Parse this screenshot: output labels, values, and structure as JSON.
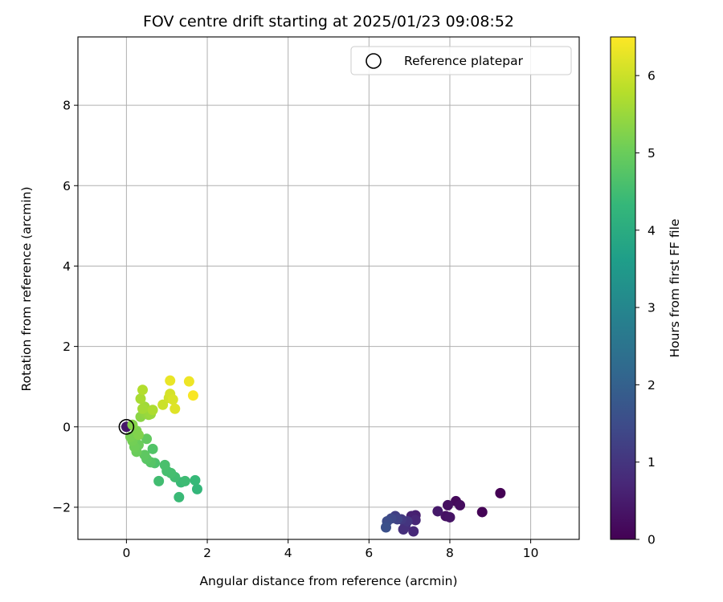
{
  "chart_data": {
    "type": "scatter",
    "title": "FOV centre drift starting at 2025/01/23 09:08:52",
    "xlabel": "Angular distance from reference (arcmin)",
    "ylabel": "Rotation from reference (arcmin)",
    "xlim": [
      -1.2,
      11.2
    ],
    "ylim": [
      -2.8,
      9.7
    ],
    "xticks": [
      0,
      2,
      4,
      6,
      8,
      10
    ],
    "xtick_labels": [
      "0",
      "2",
      "4",
      "6",
      "8",
      "10"
    ],
    "yticks": [
      -2,
      0,
      2,
      4,
      6,
      8
    ],
    "ytick_labels": [
      "−2",
      "0",
      "2",
      "4",
      "6",
      "8"
    ],
    "grid": true,
    "legend": {
      "position": "top-right",
      "entries": [
        {
          "label": "Reference platepar",
          "marker": "open-circle"
        }
      ]
    },
    "reference_point": {
      "x": 0,
      "y": 0
    },
    "colorbar": {
      "label": "Hours from first FF file",
      "range": [
        0,
        6.5
      ],
      "ticks": [
        0,
        1,
        2,
        3,
        4,
        5,
        6
      ],
      "tick_labels": [
        "0",
        "1",
        "2",
        "3",
        "4",
        "5",
        "6"
      ],
      "colormap": "viridis"
    },
    "colormap_stops": [
      "#440154",
      "#482878",
      "#3e4a89",
      "#31688e",
      "#26828e",
      "#1f9e89",
      "#35b779",
      "#6ece58",
      "#b5de2b",
      "#fde725"
    ],
    "points": [
      {
        "x": 9.25,
        "y": -1.65,
        "t": 0.0
      },
      {
        "x": 8.8,
        "y": -2.12,
        "t": 0.05
      },
      {
        "x": 8.15,
        "y": -1.85,
        "t": 0.15
      },
      {
        "x": 8.25,
        "y": -1.95,
        "t": 0.2
      },
      {
        "x": 7.95,
        "y": -1.95,
        "t": 0.25
      },
      {
        "x": 7.9,
        "y": -2.22,
        "t": 0.3
      },
      {
        "x": 8.0,
        "y": -2.25,
        "t": 0.35
      },
      {
        "x": 7.7,
        "y": -2.1,
        "t": 0.45
      },
      {
        "x": 7.15,
        "y": -2.2,
        "t": 0.55
      },
      {
        "x": 7.05,
        "y": -2.22,
        "t": 0.6
      },
      {
        "x": 7.15,
        "y": -2.32,
        "t": 0.7
      },
      {
        "x": 7.1,
        "y": -2.6,
        "t": 0.75
      },
      {
        "x": 6.9,
        "y": -2.45,
        "t": 0.85
      },
      {
        "x": 6.85,
        "y": -2.55,
        "t": 0.9
      },
      {
        "x": 6.95,
        "y": -2.35,
        "t": 1.0
      },
      {
        "x": 6.8,
        "y": -2.3,
        "t": 1.1
      },
      {
        "x": 6.65,
        "y": -2.22,
        "t": 1.2
      },
      {
        "x": 6.7,
        "y": -2.3,
        "t": 1.3
      },
      {
        "x": 6.55,
        "y": -2.28,
        "t": 1.4
      },
      {
        "x": 6.45,
        "y": -2.35,
        "t": 1.5
      },
      {
        "x": 6.42,
        "y": -2.5,
        "t": 1.6
      },
      {
        "x": 0.0,
        "y": 0.0,
        "t": 0.4
      },
      {
        "x": 1.75,
        "y": -1.55,
        "t": 4.3
      },
      {
        "x": 1.7,
        "y": -1.33,
        "t": 4.35
      },
      {
        "x": 1.35,
        "y": -1.38,
        "t": 4.4
      },
      {
        "x": 1.45,
        "y": -1.35,
        "t": 4.45
      },
      {
        "x": 1.3,
        "y": -1.75,
        "t": 4.4
      },
      {
        "x": 1.2,
        "y": -1.25,
        "t": 4.5
      },
      {
        "x": 1.1,
        "y": -1.15,
        "t": 4.55
      },
      {
        "x": 1.0,
        "y": -1.1,
        "t": 4.55
      },
      {
        "x": 0.95,
        "y": -0.95,
        "t": 4.6
      },
      {
        "x": 0.8,
        "y": -1.35,
        "t": 4.5
      },
      {
        "x": 0.7,
        "y": -0.9,
        "t": 4.65
      },
      {
        "x": 0.65,
        "y": -0.55,
        "t": 4.7
      },
      {
        "x": 0.6,
        "y": -0.88,
        "t": 4.75
      },
      {
        "x": 0.5,
        "y": -0.8,
        "t": 4.8
      },
      {
        "x": 0.45,
        "y": -0.7,
        "t": 4.85
      },
      {
        "x": 0.5,
        "y": -0.3,
        "t": 4.9
      },
      {
        "x": 0.3,
        "y": -0.45,
        "t": 5.0
      },
      {
        "x": 0.25,
        "y": -0.62,
        "t": 5.0
      },
      {
        "x": 0.2,
        "y": -0.5,
        "t": 5.05
      },
      {
        "x": 0.15,
        "y": -0.35,
        "t": 5.1
      },
      {
        "x": 0.1,
        "y": -0.25,
        "t": 5.15
      },
      {
        "x": 0.25,
        "y": -0.1,
        "t": 5.2
      },
      {
        "x": 0.3,
        "y": -0.2,
        "t": 5.25
      },
      {
        "x": 0.15,
        "y": 0.05,
        "t": 5.3
      },
      {
        "x": 0.35,
        "y": 0.25,
        "t": 5.35
      },
      {
        "x": 0.45,
        "y": 0.35,
        "t": 5.4
      },
      {
        "x": 0.55,
        "y": 0.3,
        "t": 5.45
      },
      {
        "x": 0.6,
        "y": 0.32,
        "t": 5.5
      },
      {
        "x": 0.45,
        "y": 0.5,
        "t": 5.55
      },
      {
        "x": 0.4,
        "y": 0.45,
        "t": 5.6
      },
      {
        "x": 0.35,
        "y": 0.7,
        "t": 5.65
      },
      {
        "x": 0.4,
        "y": 0.92,
        "t": 5.75
      },
      {
        "x": 0.65,
        "y": 0.42,
        "t": 5.7
      },
      {
        "x": 0.9,
        "y": 0.55,
        "t": 6.0
      },
      {
        "x": 1.05,
        "y": 0.72,
        "t": 6.05
      },
      {
        "x": 1.08,
        "y": 0.82,
        "t": 6.1
      },
      {
        "x": 1.15,
        "y": 0.68,
        "t": 6.15
      },
      {
        "x": 1.2,
        "y": 0.45,
        "t": 6.2
      },
      {
        "x": 1.08,
        "y": 1.15,
        "t": 6.3
      },
      {
        "x": 1.55,
        "y": 1.13,
        "t": 6.35
      },
      {
        "x": 1.65,
        "y": 0.78,
        "t": 6.45
      }
    ]
  }
}
